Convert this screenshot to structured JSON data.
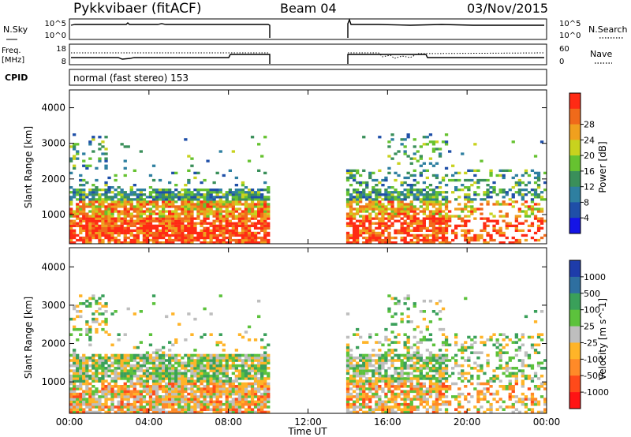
{
  "header": {
    "title": "Pykkvibaer (fitACF)",
    "beam": "Beam 04",
    "date": "03/Nov/2015"
  },
  "nsky_panel": {
    "left_label": "N.Sky",
    "left_ticks": [
      "10^5",
      "10^0"
    ],
    "right_label": "N.Search",
    "right_ticks": [
      "10^5",
      "10^0"
    ]
  },
  "freq_panel": {
    "left_label_1": "Freq.",
    "left_label_2": "[MHz]",
    "left_ticks": [
      "18",
      "8"
    ],
    "right_label": "Nave",
    "right_ticks": [
      "60",
      "0"
    ]
  },
  "cpid_panel": {
    "label": "CPID",
    "text": "normal (fast stereo) 153"
  },
  "colors": {
    "power": [
      "#1414e6",
      "#1f4fa8",
      "#2e7fa0",
      "#3a8f5a",
      "#66c230",
      "#c8d21e",
      "#f0a01e",
      "#f06a1a",
      "#ff2a14"
    ],
    "velocity": [
      "#ff1414",
      "#ff4a1a",
      "#ff8a28",
      "#ffb428",
      "#bebebe",
      "#5cc23c",
      "#3aa05a",
      "#2e6fa0",
      "#1e3caa"
    ]
  },
  "chart_data": [
    {
      "type": "heatmap",
      "name": "power",
      "ylabel": "Slant Range [km]",
      "y_ticks": [
        "1000",
        "2000",
        "3000",
        "4000"
      ],
      "ylim": [
        180,
        4500
      ],
      "colorbar_label": "Power [dB]",
      "colorbar_ticks": [
        "4",
        "8",
        "12",
        "16",
        "20",
        "24",
        "28"
      ],
      "data_gap_hours": [
        10.0,
        14.0
      ]
    },
    {
      "type": "heatmap",
      "name": "velocity",
      "ylabel": "Slant Range [km]",
      "y_ticks": [
        "1000",
        "2000",
        "3000",
        "4000"
      ],
      "ylim": [
        180,
        4500
      ],
      "colorbar_label": "Velocity [m s^-1]",
      "colorbar_ticks": [
        "1000",
        "500",
        "100",
        "25",
        "-25",
        "-100",
        "-500",
        "-1000"
      ],
      "xlabel": "Time UT",
      "x_ticks": [
        "00:00",
        "04:00",
        "08:00",
        "12:00",
        "16:00",
        "20:00",
        "00:00"
      ],
      "xlim_hours": [
        0,
        24
      ]
    }
  ]
}
